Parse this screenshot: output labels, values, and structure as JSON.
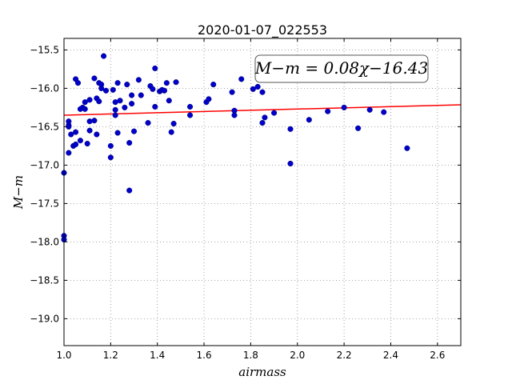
{
  "chart_data": {
    "type": "scatter",
    "title": "2020-01-07_022553",
    "xlabel": "airmass",
    "ylabel": "M−m",
    "xlim": [
      1.0,
      2.7
    ],
    "ylim": [
      -19.4,
      -15.4
    ],
    "y_inverted": true,
    "grid": true,
    "x_ticks": [
      "1.0",
      "1.2",
      "1.4",
      "1.6",
      "1.8",
      "2.0",
      "2.2",
      "2.4",
      "2.6"
    ],
    "x_tick_values": [
      1.0,
      1.2,
      1.4,
      1.6,
      1.8,
      2.0,
      2.2,
      2.4,
      2.6
    ],
    "y_ticks": [
      "−15.5",
      "−16.0",
      "−16.5",
      "−17.0",
      "−17.5",
      "−18.0",
      "−18.5",
      "−19.0"
    ],
    "y_tick_values": [
      -15.5,
      -16.0,
      -16.5,
      -17.0,
      -17.5,
      -18.0,
      -18.5,
      -19.0
    ],
    "annotation": "M−m = 0.08χ−16.43",
    "point_color": "#0000c8",
    "fit_color": "#ff0000",
    "fit": {
      "slope": 0.08,
      "intercept": -16.43
    },
    "points": [
      [
        1.0,
        -17.1
      ],
      [
        1.0,
        -17.92
      ],
      [
        1.0,
        -17.97
      ],
      [
        1.02,
        -16.43
      ],
      [
        1.02,
        -16.48
      ],
      [
        1.02,
        -16.5
      ],
      [
        1.02,
        -16.84
      ],
      [
        1.03,
        -16.6
      ],
      [
        1.04,
        -16.75
      ],
      [
        1.05,
        -16.57
      ],
      [
        1.05,
        -16.73
      ],
      [
        1.05,
        -15.88
      ],
      [
        1.06,
        -15.93
      ],
      [
        1.07,
        -16.68
      ],
      [
        1.07,
        -16.27
      ],
      [
        1.08,
        -16.25
      ],
      [
        1.09,
        -16.18
      ],
      [
        1.09,
        -16.27
      ],
      [
        1.1,
        -16.72
      ],
      [
        1.11,
        -16.15
      ],
      [
        1.11,
        -16.43
      ],
      [
        1.11,
        -16.55
      ],
      [
        1.13,
        -15.87
      ],
      [
        1.13,
        -16.42
      ],
      [
        1.14,
        -16.6
      ],
      [
        1.14,
        -16.13
      ],
      [
        1.15,
        -16.17
      ],
      [
        1.15,
        -15.93
      ],
      [
        1.16,
        -15.95
      ],
      [
        1.16,
        -16.0
      ],
      [
        1.17,
        -15.58
      ],
      [
        1.18,
        -16.03
      ],
      [
        1.2,
        -16.75
      ],
      [
        1.2,
        -16.9
      ],
      [
        1.21,
        -16.02
      ],
      [
        1.22,
        -16.28
      ],
      [
        1.22,
        -16.35
      ],
      [
        1.22,
        -16.18
      ],
      [
        1.23,
        -15.93
      ],
      [
        1.23,
        -16.58
      ],
      [
        1.24,
        -16.16
      ],
      [
        1.26,
        -16.25
      ],
      [
        1.27,
        -15.95
      ],
      [
        1.28,
        -16.71
      ],
      [
        1.28,
        -17.33
      ],
      [
        1.29,
        -16.09
      ],
      [
        1.29,
        -16.2
      ],
      [
        1.3,
        -16.56
      ],
      [
        1.32,
        -15.89
      ],
      [
        1.33,
        -16.09
      ],
      [
        1.36,
        -16.45
      ],
      [
        1.37,
        -15.97
      ],
      [
        1.38,
        -16.01
      ],
      [
        1.39,
        -16.24
      ],
      [
        1.39,
        -15.74
      ],
      [
        1.41,
        -16.04
      ],
      [
        1.42,
        -16.02
      ],
      [
        1.43,
        -16.03
      ],
      [
        1.44,
        -15.93
      ],
      [
        1.45,
        -16.16
      ],
      [
        1.46,
        -16.57
      ],
      [
        1.47,
        -16.46
      ],
      [
        1.48,
        -15.92
      ],
      [
        1.54,
        -16.24
      ],
      [
        1.54,
        -16.35
      ],
      [
        1.61,
        -16.18
      ],
      [
        1.62,
        -16.14
      ],
      [
        1.64,
        -15.95
      ],
      [
        1.72,
        -16.05
      ],
      [
        1.73,
        -16.29
      ],
      [
        1.73,
        -16.35
      ],
      [
        1.76,
        -15.88
      ],
      [
        1.81,
        -16.01
      ],
      [
        1.83,
        -15.98
      ],
      [
        1.85,
        -16.05
      ],
      [
        1.85,
        -16.45
      ],
      [
        1.86,
        -16.38
      ],
      [
        1.9,
        -16.32
      ],
      [
        1.97,
        -16.53
      ],
      [
        1.97,
        -16.98
      ],
      [
        2.05,
        -16.41
      ],
      [
        2.13,
        -16.3
      ],
      [
        2.2,
        -16.25
      ],
      [
        2.26,
        -16.52
      ],
      [
        2.31,
        -16.28
      ],
      [
        2.37,
        -16.31
      ],
      [
        2.47,
        -16.78
      ]
    ]
  }
}
